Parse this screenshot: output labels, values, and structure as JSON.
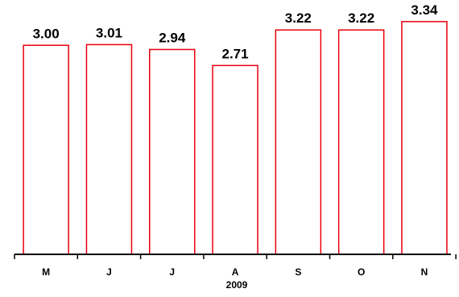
{
  "chart_data": {
    "type": "bar",
    "categories": [
      "M",
      "J",
      "J",
      "A",
      "S",
      "O",
      "N"
    ],
    "values": [
      3.0,
      3.01,
      2.94,
      2.71,
      3.22,
      3.22,
      3.34
    ],
    "value_labels": [
      "3.00",
      "3.01",
      "2.94",
      "2.71",
      "3.22",
      "3.22",
      "3.34"
    ],
    "year_label": "2009",
    "ylim": [
      0,
      3.65
    ],
    "grid": false,
    "legend": "none",
    "bar_fill": "#ffffff",
    "bar_stroke": "#e8000b",
    "axis_color": "#000000"
  }
}
